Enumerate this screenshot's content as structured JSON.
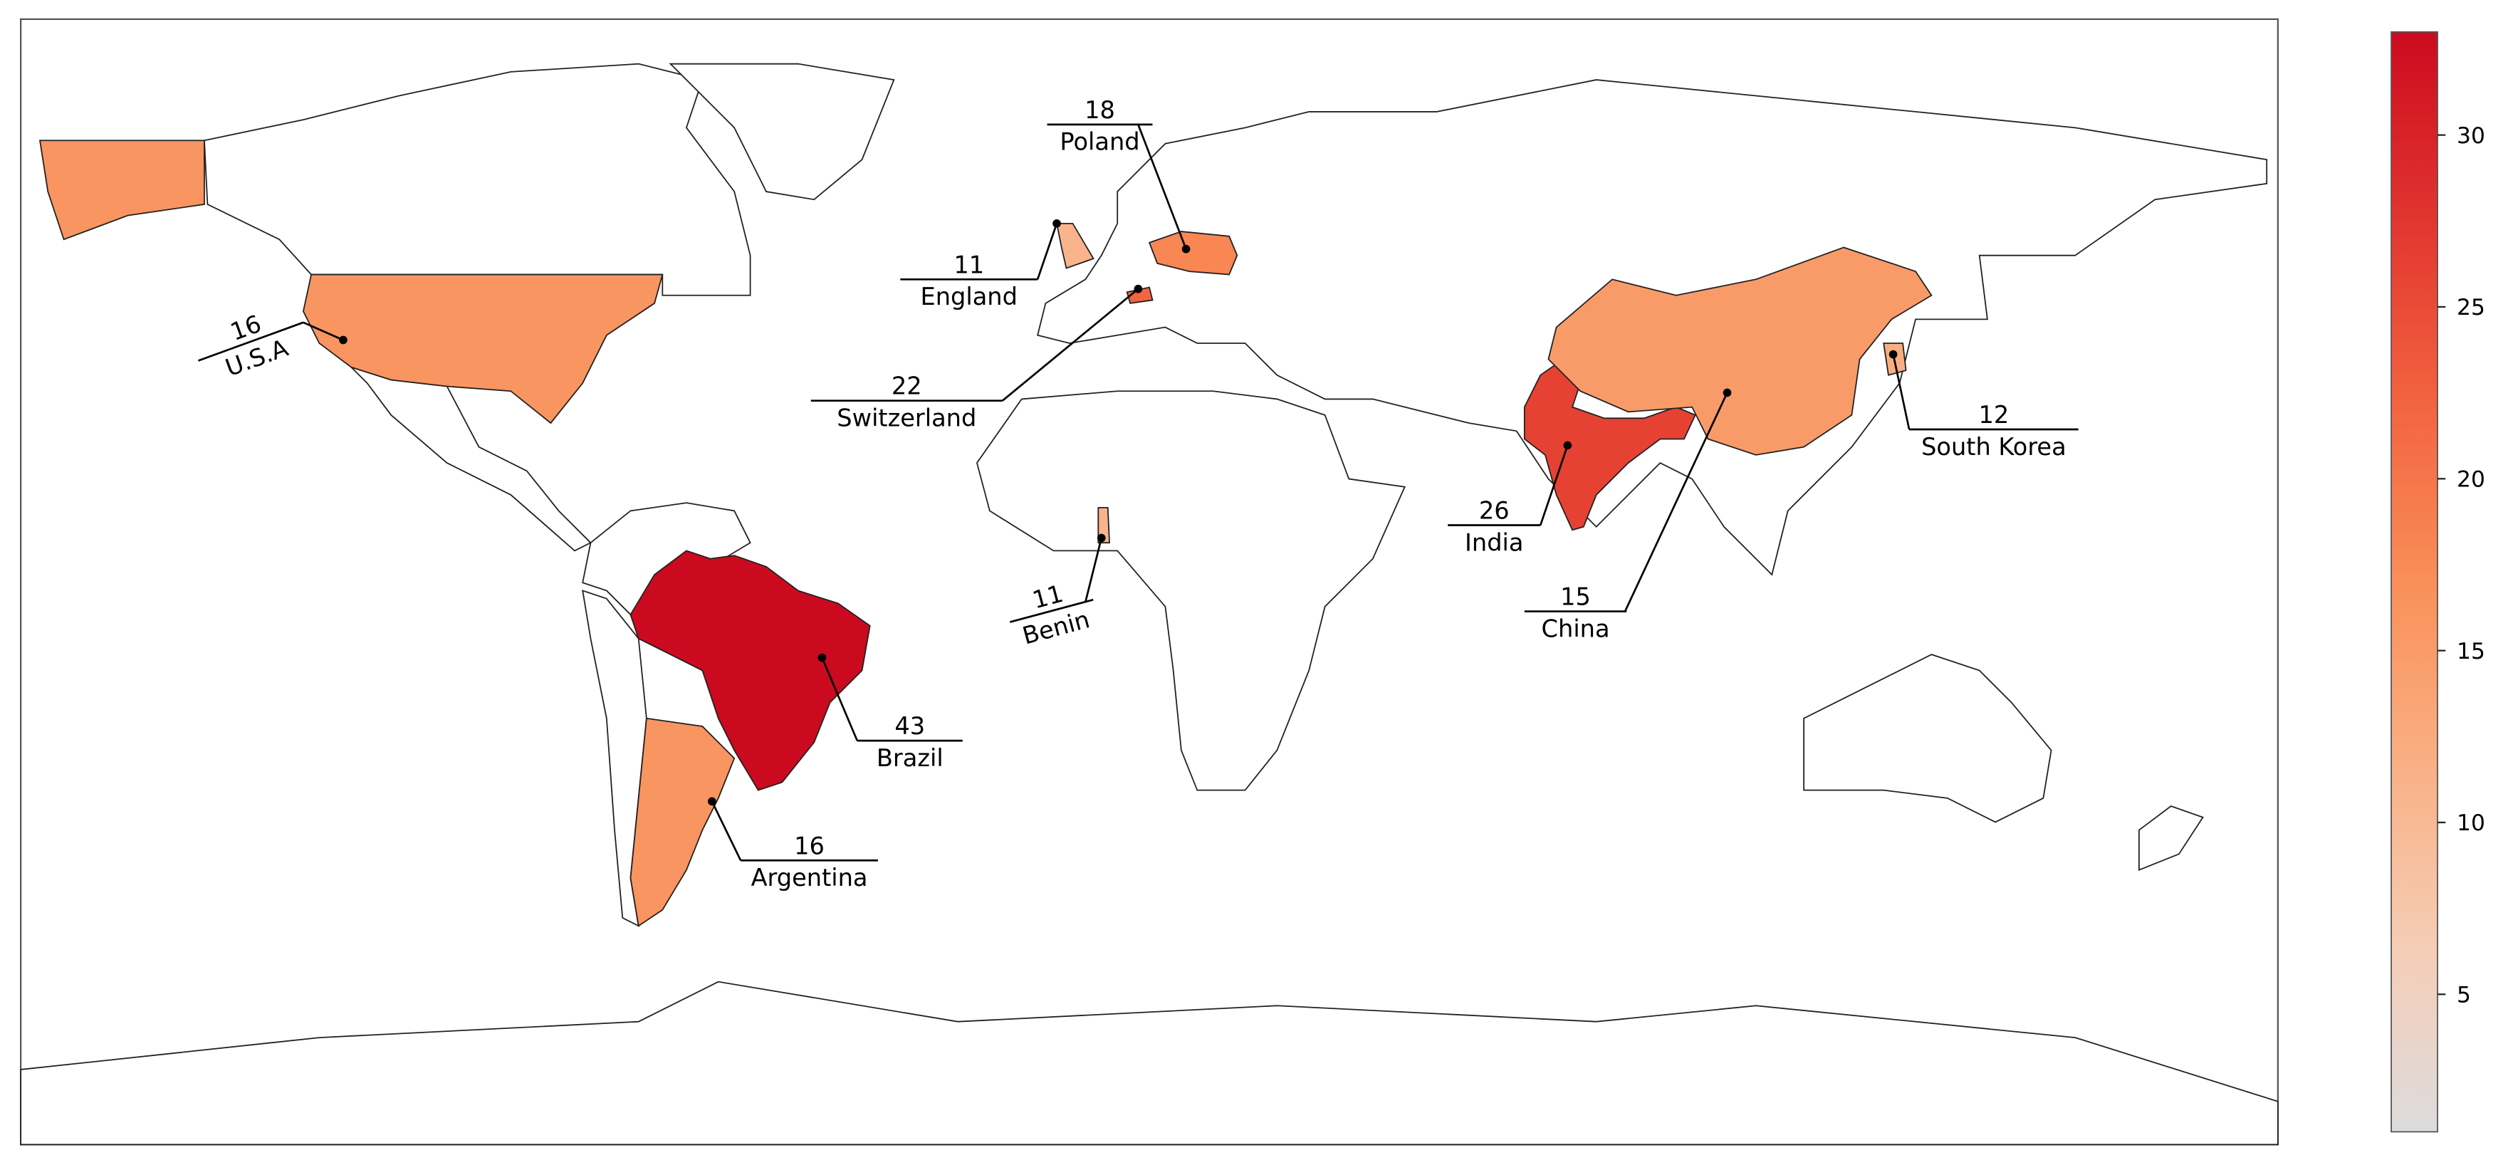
{
  "chart_data": {
    "type": "choropleth",
    "regions": [
      {
        "name": "Brazil",
        "value": 43
      },
      {
        "name": "India",
        "value": 26
      },
      {
        "name": "Switzerland",
        "value": 22
      },
      {
        "name": "Poland",
        "value": 18
      },
      {
        "name": "U.S.A",
        "value": 16
      },
      {
        "name": "Argentina",
        "value": 16
      },
      {
        "name": "China",
        "value": 15
      },
      {
        "name": "South Korea",
        "value": 12
      },
      {
        "name": "England",
        "value": 11
      },
      {
        "name": "Benin",
        "value": 11
      }
    ],
    "colorbar": {
      "clim": [
        1,
        33
      ],
      "ticks": [
        5,
        10,
        15,
        20,
        25,
        30
      ],
      "colormap": [
        "#dcdcdc",
        "#f6cdb6",
        "#f9b085",
        "#f98f58",
        "#f2623f",
        "#e1342f",
        "#cc0a1f"
      ]
    }
  }
}
